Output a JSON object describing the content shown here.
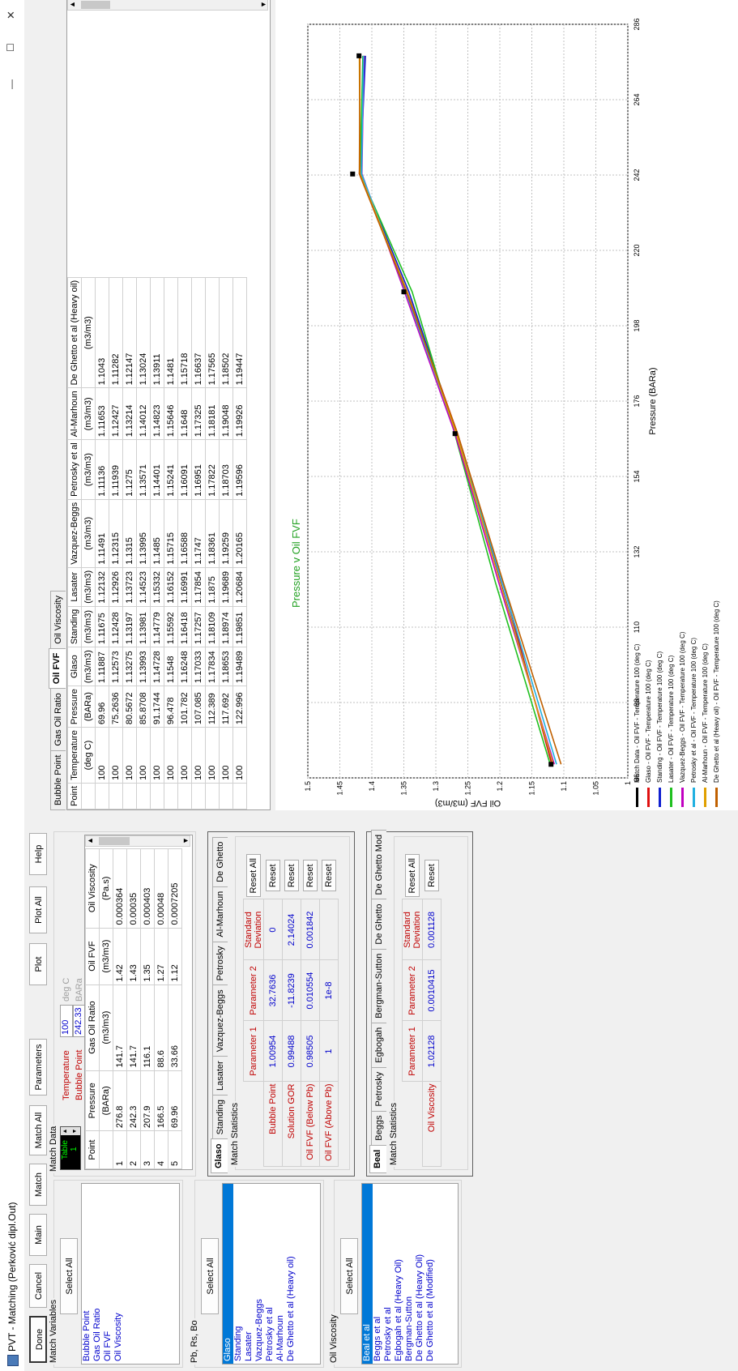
{
  "window": {
    "title": "PVT - Matching (Perković dipl.Out)",
    "min": "—",
    "max": "☐",
    "close": "✕"
  },
  "buttons": {
    "done": "Done",
    "cancel": "Cancel",
    "main": "Main",
    "match": "Match",
    "match_all": "Match All",
    "parameters": "Parameters",
    "plot": "Plot",
    "plot_all": "Plot All",
    "help": "Help"
  },
  "match_variables": {
    "title": "Match Variables",
    "select_all": "Select All",
    "items": [
      "Bubble Point",
      "Gas Oil Ratio",
      "Oil FVF",
      "Oil Viscosity"
    ]
  },
  "pb_rs_bo": {
    "title": "Pb, Rs, Bo",
    "select_all": "Select All",
    "items": [
      "Glaso",
      "Standing",
      "Lasater",
      "Vazquez-Beggs",
      "Petrosky et al",
      "Al-Marhoun",
      "De Ghetto et al (Heavy oil)"
    ],
    "selected": 0
  },
  "oil_viscosity": {
    "title": "Oil Viscosity",
    "select_all": "Select All",
    "items": [
      "Beal et al",
      "Beggs et al",
      "Petrosky et al",
      "Egbogah et al (Heavy Oil)",
      "Bergman-Sutton",
      "De Ghetto et al (Heavy Oil)",
      "De Ghetto et al (Modified)"
    ],
    "selected": 0
  },
  "match_data": {
    "title": "Match Data",
    "table_label": "Table",
    "table_value": "1",
    "temperature_label": "Temperature",
    "temperature_value": "100",
    "temperature_unit": "deg C",
    "bubble_label": "Bubble Point",
    "bubble_value": "242.33",
    "bubble_unit": "BARa",
    "headers": [
      "Point",
      "Pressure",
      "Gas Oil Ratio",
      "Oil FVF",
      "Oil Viscosity"
    ],
    "units": [
      "",
      "(BARa)",
      "(m3/m3)",
      "(m3/m3)",
      "(Pa.s)"
    ],
    "rows": [
      [
        "1",
        "276.8",
        "141.7",
        "1.42",
        "0.000364"
      ],
      [
        "2",
        "242.3",
        "141.7",
        "1.43",
        "0.00035"
      ],
      [
        "3",
        "207.9",
        "116.1",
        "1.35",
        "0.000403"
      ],
      [
        "4",
        "166.5",
        "88.6",
        "1.27",
        "0.00048"
      ],
      [
        "5",
        "69.96",
        "33.66",
        "1.12",
        "0.0007205"
      ]
    ]
  },
  "pb_stats": {
    "tabs": [
      "Glaso",
      "Standing",
      "Lasater",
      "Vazquez-Beggs",
      "Petrosky",
      "Al-Marhoun",
      "De Ghetto"
    ],
    "title": "Match Statistics",
    "col_p1": "Parameter 1",
    "col_p2": "Parameter 2",
    "col_sd": "Standard Deviation",
    "reset_all": "Reset All",
    "reset": "Reset",
    "rows": [
      {
        "label": "Bubble Point",
        "p1": "1.00954",
        "p2": "32.7636",
        "sd": "0"
      },
      {
        "label": "Solution GOR",
        "p1": "0.99488",
        "p2": "-11.8239",
        "sd": "2.14024"
      },
      {
        "label": "Oil FVF (Below Pb)",
        "p1": "0.98505",
        "p2": "0.010554",
        "sd": "0.001842"
      },
      {
        "label": "Oil FVF (Above Pb)",
        "p1": "1",
        "p2": "1e-8",
        "sd": ""
      }
    ]
  },
  "visc_stats": {
    "tabs": [
      "Beal",
      "Beggs",
      "Petrosky",
      "Egbogah",
      "Bergman-Sutton",
      "De Ghetto",
      "De Ghetto Mod"
    ],
    "title": "Match Statistics",
    "col_p1": "Parameter 1",
    "col_p2": "Parameter 2",
    "col_sd": "Standard Deviation",
    "reset_all": "Reset All",
    "reset": "Reset",
    "rows": [
      {
        "label": "Oil Viscosity",
        "p1": "1.02128",
        "p2": "0.0010415",
        "sd": "0.001128"
      }
    ]
  },
  "results": {
    "tabs": [
      "Bubble Point",
      "Gas Oil Ratio",
      "Oil FVF",
      "Oil Viscosity"
    ],
    "active_tab": 2,
    "headers": [
      "Point",
      "Temperature",
      "Pressure",
      "Glaso",
      "Standing",
      "Lasater",
      "Vazquez-Beggs",
      "Petrosky et al",
      "Al-Marhoun",
      "De Ghetto et al (Heavy oil)"
    ],
    "units": [
      "",
      "(deg C)",
      "(BARa)",
      "(m3/m3)",
      "(m3/m3)",
      "(m3/m3)",
      "(m3/m3)",
      "(m3/m3)",
      "(m3/m3)",
      "(m3/m3)"
    ],
    "rows": [
      [
        "",
        "100",
        "69.96",
        "1.11887",
        "1.11675",
        "1.12132",
        "1.11491",
        "1.11136",
        "1.11653",
        "1.1043"
      ],
      [
        "",
        "100",
        "75.2636",
        "1.12573",
        "1.12428",
        "1.12926",
        "1.12315",
        "1.11939",
        "1.12427",
        "1.11282"
      ],
      [
        "",
        "100",
        "80.5672",
        "1.13275",
        "1.13197",
        "1.13723",
        "1.1315",
        "1.1275",
        "1.13214",
        "1.12147"
      ],
      [
        "",
        "100",
        "85.8708",
        "1.13993",
        "1.13981",
        "1.14523",
        "1.13995",
        "1.13571",
        "1.14012",
        "1.13024"
      ],
      [
        "",
        "100",
        "91.1744",
        "1.14728",
        "1.14779",
        "1.15332",
        "1.1485",
        "1.14401",
        "1.14823",
        "1.13911"
      ],
      [
        "",
        "100",
        "96.478",
        "1.1548",
        "1.15592",
        "1.16152",
        "1.15715",
        "1.15241",
        "1.15646",
        "1.1481"
      ],
      [
        "",
        "100",
        "101.782",
        "1.16248",
        "1.16418",
        "1.16991",
        "1.16588",
        "1.16091",
        "1.1648",
        "1.15718"
      ],
      [
        "",
        "100",
        "107.085",
        "1.17033",
        "1.17257",
        "1.17854",
        "1.1747",
        "1.16951",
        "1.17325",
        "1.16637"
      ],
      [
        "",
        "100",
        "112.389",
        "1.17834",
        "1.18109",
        "1.1875",
        "1.18361",
        "1.17822",
        "1.18181",
        "1.17565"
      ],
      [
        "",
        "100",
        "117.692",
        "1.18653",
        "1.18974",
        "1.19689",
        "1.19259",
        "1.18703",
        "1.19048",
        "1.18502"
      ],
      [
        "",
        "100",
        "122.996",
        "1.19489",
        "1.19851",
        "1.20684",
        "1.20165",
        "1.19596",
        "1.19926",
        "1.19447"
      ]
    ]
  },
  "chart_data": {
    "type": "line",
    "title": "Pressure v Oil FVF",
    "xlabel": "Pressure  (BARa)",
    "ylabel": "Oil FVF  (m3/m3)",
    "xlim": [
      66,
      286
    ],
    "ylim": [
      1.0,
      1.5
    ],
    "xticks": [
      "66",
      "88",
      "110",
      "132",
      "154",
      "176",
      "198",
      "220",
      "242",
      "264",
      "286"
    ],
    "yticks": [
      "1",
      "1.05",
      "1.1",
      "1.15",
      "1.2",
      "1.25",
      "1.3",
      "1.35",
      "1.4",
      "1.45",
      "1.5"
    ],
    "grid": true,
    "match_points": {
      "x": [
        276.8,
        242.3,
        207.9,
        166.5,
        69.96
      ],
      "y": [
        1.42,
        1.43,
        1.35,
        1.27,
        1.12
      ]
    },
    "series": [
      {
        "name": "Glaso - Oil FVF - Temperature 100 (deg C)",
        "color": "#e01010",
        "x": [
          69.96,
          122.996,
          166.5,
          207.9,
          242.33,
          276.8
        ],
        "y": [
          1.1189,
          1.1949,
          1.266,
          1.3447,
          1.4195,
          1.4115
        ]
      },
      {
        "name": "Standing - Oil FVF - Temperature 100 (deg C)",
        "color": "#1020d0",
        "x": [
          69.96,
          122.996,
          166.5,
          207.9,
          242.33,
          276.8
        ],
        "y": [
          1.1168,
          1.1985,
          1.268,
          1.342,
          1.418,
          1.41
        ]
      },
      {
        "name": "Lasater - Oil FVF - Temperature 100 (deg C)",
        "color": "#20c020",
        "x": [
          69.96,
          122.996,
          166.5,
          207.9,
          242.33,
          276.8
        ],
        "y": [
          1.1213,
          1.2068,
          1.2705,
          1.337,
          1.4185,
          1.414
        ]
      },
      {
        "name": "Vazquez-Beggs - Oil FVF - Temperature 100 (deg C)",
        "color": "#c000c0",
        "x": [
          69.96,
          122.996,
          166.5,
          207.9,
          242.33,
          276.8
        ],
        "y": [
          1.1149,
          1.2017,
          1.27,
          1.349,
          1.4155,
          1.4125
        ]
      },
      {
        "name": "Petrosky et al - Oil FVF - Temperature 100 (deg C)",
        "color": "#20b0e0",
        "x": [
          69.96,
          122.996,
          166.5,
          207.9,
          242.33,
          276.8
        ],
        "y": [
          1.1114,
          1.196,
          1.268,
          1.347,
          1.416,
          1.413
        ]
      },
      {
        "name": "Al-Marhoun - Oil FVF - Temperature 100 (deg C)",
        "color": "#e0a000",
        "x": [
          69.96,
          122.996,
          166.5,
          207.9,
          242.33,
          276.8
        ],
        "y": [
          1.1165,
          1.1993,
          1.268,
          1.345,
          1.4185,
          1.4195
        ]
      },
      {
        "name": "De Ghetto et al (Heavy oil) - Oil FVF - Temperature 100 (deg C)",
        "color": "#c06000",
        "x": [
          69.96,
          122.996,
          166.5,
          207.9,
          242.33,
          276.8
        ],
        "y": [
          1.1043,
          1.1945,
          1.266,
          1.346,
          1.4195,
          1.4185
        ]
      }
    ],
    "legend": [
      "Match Data - Oil FVF - Temperature 100 (deg C)",
      "Glaso - Oil FVF - Temperature 100 (deg C)",
      "Standing - Oil FVF - Temperature 100 (deg C)",
      "Lasater - Oil FVF - Temperature 100 (deg C)",
      "Vazquez-Beggs - Oil FVF - Temperature 100 (deg C)",
      "Petrosky et al - Oil FVF - Temperature 100 (deg C)",
      "Al-Marhoun - Oil FVF - Temperature 100 (deg C)",
      "De Ghetto et al (Heavy oil) - Oil FVF - Temperature 100 (deg C)"
    ],
    "legend_colors": [
      "#000000",
      "#e01010",
      "#1020d0",
      "#20c020",
      "#c000c0",
      "#20b0e0",
      "#e0a000",
      "#c06000"
    ]
  }
}
